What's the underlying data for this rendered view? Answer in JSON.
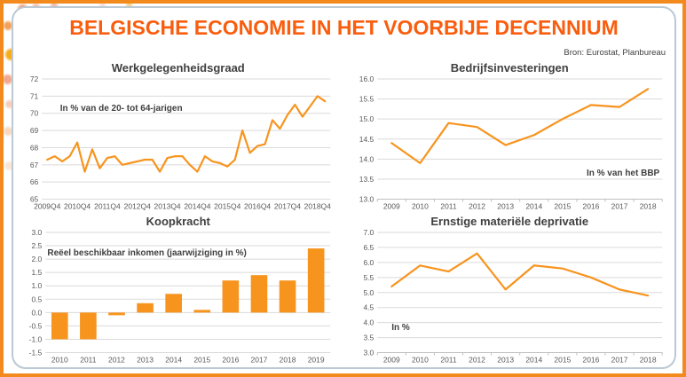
{
  "page": {
    "title": "BELGISCHE ECONOMIE IN HET VOORBIJE DECENNIUM",
    "source": "Bron: Eurostat, Planbureau"
  },
  "colors": {
    "orange": "#F7941E",
    "title_orange": "#F95D0E",
    "axis_text": "#595959",
    "chart_title_text": "#404040",
    "grid": "#DADADA",
    "axis_line": "#BFBFBF",
    "card_border": "#BBC9D4",
    "frame": "#F28A1E"
  },
  "chart_data": [
    {
      "id": "werkgelegenheidsgraad",
      "type": "line",
      "title": "Werkgelegenheidsgraad",
      "annotation": "In % van de 20- tot 64-jarigen",
      "x_mode": "edge",
      "x_start": "2009Q4",
      "x_frequency": "quarterly",
      "xtick_labels": [
        "2009Q4",
        "2010Q4",
        "2011Q4",
        "2012Q4",
        "2013Q4",
        "2014Q4",
        "2015Q4",
        "2016Q4",
        "2017Q4",
        "2018Q4"
      ],
      "xtick_every": 4,
      "values": [
        67.3,
        67.5,
        67.2,
        67.5,
        68.3,
        66.6,
        67.9,
        66.8,
        67.4,
        67.5,
        67.0,
        67.1,
        67.2,
        67.3,
        67.3,
        66.6,
        67.4,
        67.5,
        67.5,
        67.0,
        66.6,
        67.5,
        67.2,
        67.1,
        66.9,
        67.3,
        69.0,
        67.7,
        68.1,
        68.2,
        69.6,
        69.1,
        69.9,
        70.5,
        69.8,
        70.4,
        71.0,
        70.7
      ],
      "ylim": [
        65,
        72
      ],
      "yticks": [
        65,
        66,
        67,
        68,
        69,
        70,
        71,
        72
      ],
      "ytick_labels": [
        "65",
        "66",
        "67",
        "68",
        "69",
        "70",
        "71",
        "72"
      ],
      "grid": true
    },
    {
      "id": "bedrijfsinvesteringen",
      "type": "line",
      "title": "Bedrijfsinvesteringen",
      "annotation": "In % van het BBP",
      "x_mode": "center",
      "categories": [
        "2009",
        "2010",
        "2011",
        "2012",
        "2013",
        "2014",
        "2015",
        "2016",
        "2017",
        "2018"
      ],
      "values": [
        14.4,
        13.9,
        14.9,
        14.8,
        14.35,
        14.6,
        15.0,
        15.35,
        15.3,
        15.75
      ],
      "ylim": [
        13.0,
        16.0
      ],
      "yticks": [
        13.0,
        13.5,
        14.0,
        14.5,
        15.0,
        15.5,
        16.0
      ],
      "ytick_labels": [
        "13.0",
        "13.5",
        "14.0",
        "14.5",
        "15.0",
        "15.5",
        "16.0"
      ],
      "axis_line": true,
      "grid": true
    },
    {
      "id": "koopkracht",
      "type": "bar",
      "title": "Koopkracht",
      "annotation": "Reëel beschikbaar inkomen (jaarwijziging in %)",
      "x_mode": "center",
      "categories": [
        "2010",
        "2011",
        "2012",
        "2013",
        "2014",
        "2015",
        "2016",
        "2017",
        "2018",
        "2019"
      ],
      "values": [
        -1.0,
        -1.0,
        -0.1,
        0.35,
        0.7,
        0.1,
        1.2,
        1.4,
        1.2,
        2.4
      ],
      "ylim": [
        -1.5,
        3.0
      ],
      "yticks": [
        -1.5,
        -1.0,
        -0.5,
        0.0,
        0.5,
        1.0,
        1.5,
        2.0,
        2.5,
        3.0
      ],
      "ytick_labels": [
        "-1.5",
        "-1.0",
        "-0.5",
        "0.0",
        "0.5",
        "1.0",
        "1.5",
        "2.0",
        "2.5",
        "3.0"
      ],
      "grid": true
    },
    {
      "id": "ernstige-materiele-deprivatie",
      "type": "line",
      "title": "Ernstige materiële deprivatie",
      "annotation": "In %",
      "x_mode": "center",
      "categories": [
        "2009",
        "2010",
        "2011",
        "2012",
        "2013",
        "2014",
        "2015",
        "2016",
        "2017",
        "2018"
      ],
      "values": [
        5.2,
        5.9,
        5.7,
        6.3,
        5.1,
        5.9,
        5.8,
        5.5,
        5.1,
        4.9
      ],
      "ylim": [
        3.0,
        7.0
      ],
      "yticks": [
        3.0,
        3.5,
        4.0,
        4.5,
        5.0,
        5.5,
        6.0,
        6.5,
        7.0
      ],
      "ytick_labels": [
        "3.0",
        "3.5",
        "4.0",
        "4.5",
        "5.0",
        "5.5",
        "6.0",
        "6.5",
        "7.0"
      ],
      "axis_line": true,
      "grid": true
    }
  ]
}
